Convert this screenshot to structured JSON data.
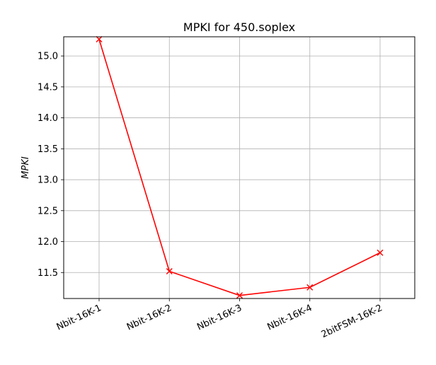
{
  "chart_data": {
    "type": "line",
    "title": "MPKI for 450.soplex",
    "xlabel": "",
    "ylabel": "MPKI",
    "categories": [
      "Nbit-16K-1",
      "Nbit-16K-2",
      "Nbit-16K-3",
      "Nbit-16K-4",
      "2bitFSM-16K-2"
    ],
    "series": [
      {
        "values": [
          15.27,
          11.52,
          11.13,
          11.26,
          11.82
        ],
        "color": "#ff0000",
        "marker": "x"
      }
    ],
    "ylim": [
      11.08,
      15.31
    ],
    "yticks": [
      11.5,
      12.0,
      12.5,
      13.0,
      13.5,
      14.0,
      14.5,
      15.0
    ],
    "ytick_labels": [
      "11.5",
      "12.0",
      "12.5",
      "13.0",
      "13.5",
      "14.0",
      "14.5",
      "15.0"
    ],
    "grid": true,
    "xtick_rotation": "angled"
  }
}
